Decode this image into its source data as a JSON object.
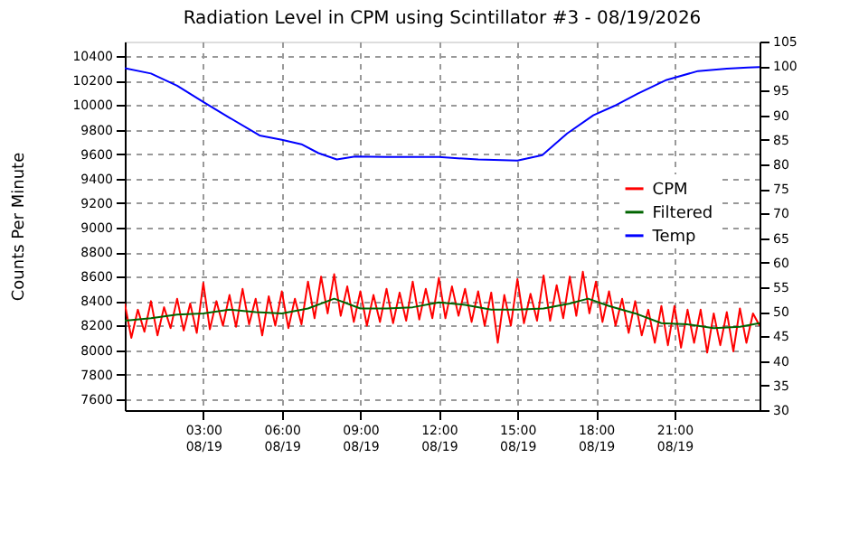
{
  "chart_data": {
    "type": "line",
    "title": "Radiation Level in CPM using Scintillator #3 - 08/19/2026",
    "ylabel": "Counts Per Minute",
    "xlim": [
      "2026-08-19T00:00",
      "2026-08-20T00:15"
    ],
    "xticks": [
      {
        "value": "2026-08-19T03:00",
        "label": "03:00\n08/19"
      },
      {
        "value": "2026-08-19T06:00",
        "label": "06:00\n08/19"
      },
      {
        "value": "2026-08-19T09:00",
        "label": "09:00\n08/19"
      },
      {
        "value": "2026-08-19T12:00",
        "label": "12:00\n08/19"
      },
      {
        "value": "2026-08-19T15:00",
        "label": "15:00\n08/19"
      },
      {
        "value": "2026-08-19T18:00",
        "label": "18:00\n08/19"
      },
      {
        "value": "2026-08-19T21:00",
        "label": "21:00\n08/19"
      }
    ],
    "ylim": [
      7510,
      10520
    ],
    "yticks": [
      7600,
      7800,
      8000,
      8200,
      8400,
      8600,
      8800,
      9000,
      9200,
      9400,
      9600,
      9800,
      10000,
      10200,
      10400
    ],
    "y2lim": [
      30,
      105
    ],
    "y2ticks": [
      30,
      35,
      40,
      45,
      50,
      55,
      60,
      65,
      70,
      75,
      80,
      85,
      90,
      95,
      100,
      105
    ],
    "grid": true,
    "legend": "right",
    "line_style": "solid",
    "marker": "none",
    "x": [
      "2026-08-19T00:00",
      "2026-08-19T00:15",
      "2026-08-19T00:30",
      "2026-08-19T00:45",
      "2026-08-19T01:00",
      "2026-08-19T01:15",
      "2026-08-19T01:30",
      "2026-08-19T01:45",
      "2026-08-19T02:00",
      "2026-08-19T02:15",
      "2026-08-19T02:30",
      "2026-08-19T02:45",
      "2026-08-19T03:00",
      "2026-08-19T03:15",
      "2026-08-19T03:30",
      "2026-08-19T03:45",
      "2026-08-19T04:00",
      "2026-08-19T04:15",
      "2026-08-19T04:30",
      "2026-08-19T04:45",
      "2026-08-19T05:00",
      "2026-08-19T05:15",
      "2026-08-19T05:30",
      "2026-08-19T05:45",
      "2026-08-19T06:00",
      "2026-08-19T06:15",
      "2026-08-19T06:30",
      "2026-08-19T06:45",
      "2026-08-19T07:00",
      "2026-08-19T07:15",
      "2026-08-19T07:30",
      "2026-08-19T07:45",
      "2026-08-19T08:00",
      "2026-08-19T08:15",
      "2026-08-19T08:30",
      "2026-08-19T08:45",
      "2026-08-19T09:00",
      "2026-08-19T09:15",
      "2026-08-19T09:30",
      "2026-08-19T09:45",
      "2026-08-19T10:00",
      "2026-08-19T10:15",
      "2026-08-19T10:30",
      "2026-08-19T10:45",
      "2026-08-19T11:00",
      "2026-08-19T11:15",
      "2026-08-19T11:30",
      "2026-08-19T11:45",
      "2026-08-19T12:00",
      "2026-08-19T12:15",
      "2026-08-19T12:30",
      "2026-08-19T12:45",
      "2026-08-19T13:00",
      "2026-08-19T13:15",
      "2026-08-19T13:30",
      "2026-08-19T13:45",
      "2026-08-19T14:00",
      "2026-08-19T14:15",
      "2026-08-19T14:30",
      "2026-08-19T14:45",
      "2026-08-19T15:00",
      "2026-08-19T15:15",
      "2026-08-19T15:30",
      "2026-08-19T15:45",
      "2026-08-19T16:00",
      "2026-08-19T16:15",
      "2026-08-19T16:30",
      "2026-08-19T16:45",
      "2026-08-19T17:00",
      "2026-08-19T17:15",
      "2026-08-19T17:30",
      "2026-08-19T17:45",
      "2026-08-19T18:00",
      "2026-08-19T18:15",
      "2026-08-19T18:30",
      "2026-08-19T18:45",
      "2026-08-19T19:00",
      "2026-08-19T19:15",
      "2026-08-19T19:30",
      "2026-08-19T19:45",
      "2026-08-19T20:00",
      "2026-08-19T20:15",
      "2026-08-19T20:30",
      "2026-08-19T20:45",
      "2026-08-19T21:00",
      "2026-08-19T21:15",
      "2026-08-19T21:30",
      "2026-08-19T21:45",
      "2026-08-19T22:00",
      "2026-08-19T22:15",
      "2026-08-19T22:30",
      "2026-08-19T22:45",
      "2026-08-19T23:00",
      "2026-08-19T23:15",
      "2026-08-19T23:30",
      "2026-08-19T23:45",
      "2026-08-20T00:00",
      "2026-08-20T00:15"
    ],
    "series": [
      {
        "name": "CPM",
        "color": "#ff0000",
        "values": [
          8380,
          8100,
          8330,
          8150,
          8400,
          8120,
          8350,
          8180,
          8420,
          8160,
          8380,
          8140,
          8550,
          8170,
          8400,
          8200,
          8450,
          8190,
          8500,
          8210,
          8420,
          8120,
          8440,
          8200,
          8480,
          8180,
          8420,
          8210,
          8560,
          8260,
          8600,
          8300,
          8620,
          8280,
          8520,
          8230,
          8480,
          8200,
          8450,
          8230,
          8500,
          8220,
          8470,
          8240,
          8560,
          8250,
          8500,
          8260,
          8590,
          8260,
          8520,
          8280,
          8500,
          8230,
          8480,
          8200,
          8470,
          8060,
          8450,
          8200,
          8580,
          8220,
          8460,
          8240,
          8610,
          8240,
          8530,
          8260,
          8600,
          8280,
          8640,
          8300,
          8560,
          8230,
          8480,
          8200,
          8420,
          8140,
          8400,
          8120,
          8330,
          8060,
          8360,
          8040,
          8360,
          8020,
          8330,
          8060,
          8330,
          7980,
          8300,
          8040,
          8310,
          7990,
          8340,
          8060,
          8300,
          8200
        ]
      },
      {
        "name": "Filtered",
        "color": "#006400",
        "x": [
          "2026-08-19T00:00",
          "2026-08-19T01:00",
          "2026-08-19T02:00",
          "2026-08-19T03:00",
          "2026-08-19T04:00",
          "2026-08-19T05:00",
          "2026-08-19T06:00",
          "2026-08-19T07:00",
          "2026-08-19T08:00",
          "2026-08-19T09:00",
          "2026-08-19T10:00",
          "2026-08-19T11:00",
          "2026-08-19T12:00",
          "2026-08-19T13:00",
          "2026-08-19T14:00",
          "2026-08-19T15:00",
          "2026-08-19T16:00",
          "2026-08-19T17:00",
          "2026-08-19T17:42",
          "2026-08-19T18:30",
          "2026-08-19T19:30",
          "2026-08-19T20:30",
          "2026-08-19T21:30",
          "2026-08-19T22:30",
          "2026-08-19T23:30",
          "2026-08-20T00:15"
        ],
        "values": [
          8240,
          8260,
          8290,
          8300,
          8330,
          8310,
          8300,
          8340,
          8420,
          8340,
          8340,
          8350,
          8390,
          8370,
          8330,
          8330,
          8340,
          8380,
          8420,
          8360,
          8300,
          8220,
          8210,
          8180,
          8190,
          8220
        ]
      },
      {
        "name": "Temp",
        "color": "#0000ff",
        "axis": "y2",
        "x": [
          "2026-08-19T00:00",
          "2026-08-19T01:00",
          "2026-08-19T02:00",
          "2026-08-19T03:00",
          "2026-08-19T04:00",
          "2026-08-19T05:09",
          "2026-08-19T06:00",
          "2026-08-19T06:45",
          "2026-08-19T07:24",
          "2026-08-19T08:06",
          "2026-08-19T08:48",
          "2026-08-19T10:00",
          "2026-08-19T12:00",
          "2026-08-19T13:30",
          "2026-08-19T15:00",
          "2026-08-19T15:57",
          "2026-08-19T16:54",
          "2026-08-19T17:54",
          "2026-08-19T18:42",
          "2026-08-19T19:36",
          "2026-08-19T20:42",
          "2026-08-19T21:54",
          "2026-08-19T23:00",
          "2026-08-19T23:48",
          "2026-08-20T00:15"
        ],
        "values": [
          99.6,
          98.5,
          96,
          92.7,
          89.5,
          85.9,
          85,
          84.1,
          82.3,
          81,
          81.6,
          81.5,
          81.5,
          81,
          80.8,
          81.9,
          86.3,
          90,
          91.9,
          94.4,
          97.2,
          99,
          99.5,
          99.7,
          99.8
        ]
      }
    ]
  }
}
